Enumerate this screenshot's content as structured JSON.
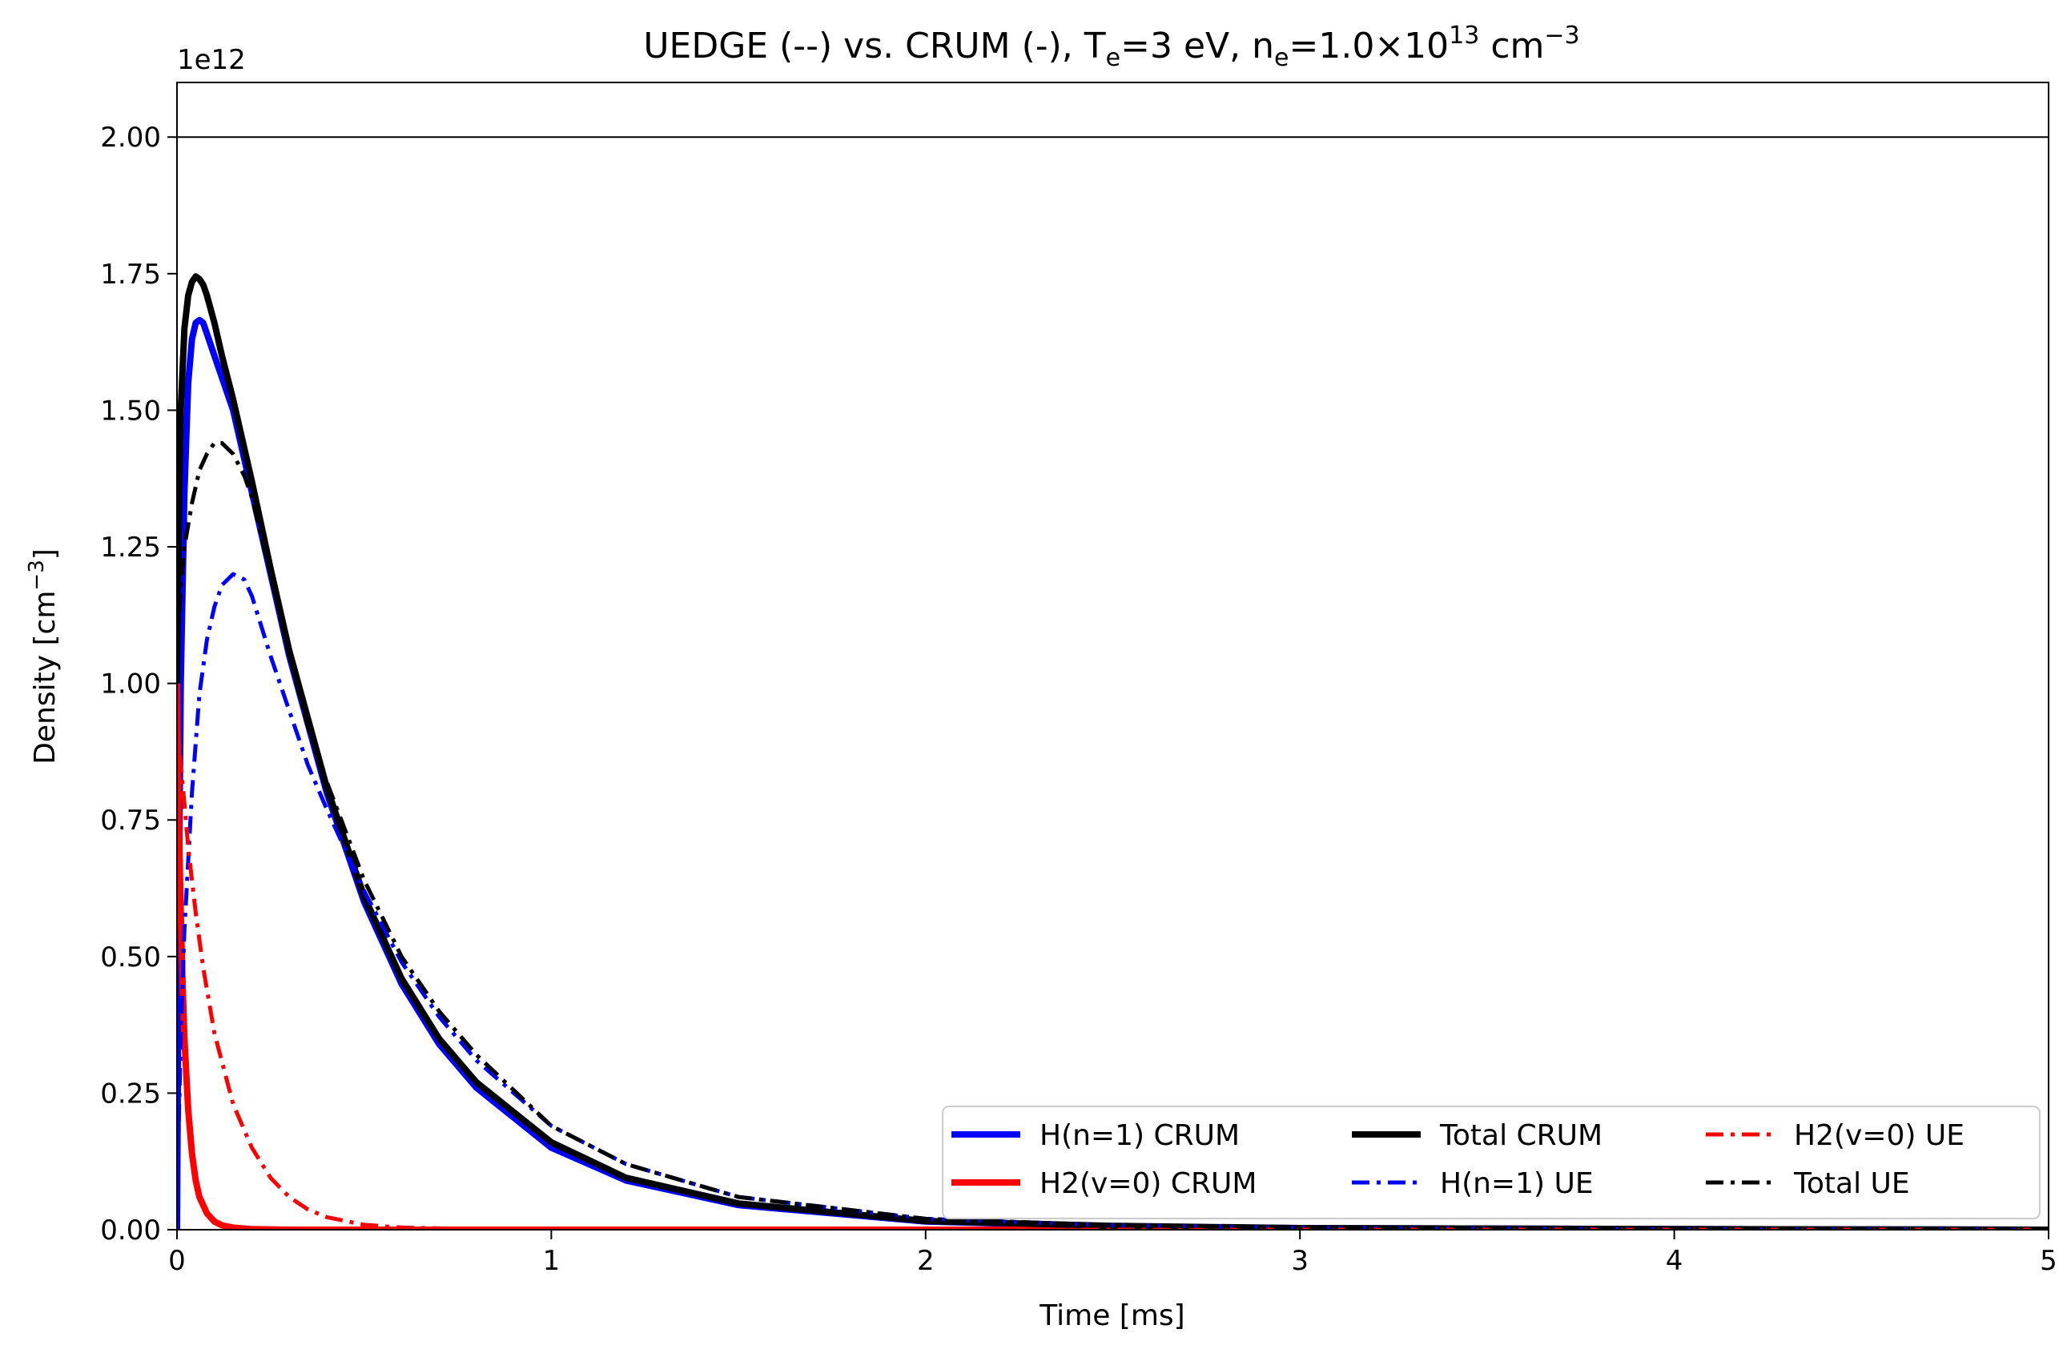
{
  "chart_data": {
    "type": "line",
    "title": {
      "main": "UEDGE (--) vs. CRUM (-),  T",
      "te_sub": "e",
      "te_rest": "=3 eV, n",
      "ne_sub": "e",
      "ne_rest": "=1.0×10",
      "exp": "13",
      "unit": " cm",
      "unit_exp": "−3"
    },
    "xlabel": "Time [ms]",
    "ylabel": {
      "main": "Density [cm",
      "exp": "−3",
      "close": "]"
    },
    "y_offset_label": "1e12",
    "xlim": [
      0,
      5
    ],
    "ylim": [
      0,
      2.1
    ],
    "x_ticks": [
      0,
      1,
      2,
      3,
      4,
      5
    ],
    "x_tick_labels": [
      "0",
      "1",
      "2",
      "3",
      "4",
      "5"
    ],
    "y_ticks": [
      0,
      0.25,
      0.5,
      0.75,
      1.0,
      1.25,
      1.5,
      1.75,
      2.0
    ],
    "y_tick_labels": [
      "0.00",
      "0.25",
      "0.50",
      "0.75",
      "1.00",
      "1.25",
      "1.50",
      "1.75",
      "2.00"
    ],
    "reference_line_y": 2.0,
    "grid": false,
    "legend_position": "lower-right",
    "legend_columns": 3,
    "series": [
      {
        "name": "H(n=1) CRUM",
        "color": "#0000ff",
        "style": "solid",
        "x": [
          0,
          0.005,
          0.01,
          0.02,
          0.03,
          0.04,
          0.05,
          0.06,
          0.07,
          0.08,
          0.1,
          0.12,
          0.15,
          0.2,
          0.25,
          0.3,
          0.4,
          0.5,
          0.6,
          0.7,
          0.8,
          1.0,
          1.2,
          1.5,
          2.0,
          2.5,
          3.0,
          4.0,
          5.0
        ],
        "y": [
          0,
          0.6,
          1.0,
          1.35,
          1.55,
          1.63,
          1.66,
          1.665,
          1.66,
          1.64,
          1.6,
          1.56,
          1.5,
          1.35,
          1.2,
          1.05,
          0.8,
          0.6,
          0.45,
          0.34,
          0.26,
          0.15,
          0.09,
          0.045,
          0.015,
          0.006,
          0.003,
          0.001,
          0.0
        ]
      },
      {
        "name": "H2(v=0) CRUM",
        "color": "#ff0000",
        "style": "solid",
        "x": [
          0,
          0.002,
          0.005,
          0.01,
          0.015,
          0.02,
          0.03,
          0.04,
          0.05,
          0.06,
          0.08,
          0.1,
          0.12,
          0.15,
          0.2,
          0.3,
          0.5,
          1.0,
          2.0,
          3.0,
          5.0
        ],
        "y": [
          1.0,
          0.9,
          0.75,
          0.58,
          0.45,
          0.35,
          0.22,
          0.14,
          0.09,
          0.06,
          0.03,
          0.015,
          0.008,
          0.004,
          0.001,
          0.0,
          0.0,
          0.0,
          0.0,
          0.0,
          0.0
        ]
      },
      {
        "name": "Total CRUM",
        "color": "#000000",
        "style": "solid",
        "x": [
          0,
          0.005,
          0.01,
          0.02,
          0.03,
          0.04,
          0.05,
          0.06,
          0.07,
          0.08,
          0.1,
          0.12,
          0.15,
          0.2,
          0.25,
          0.3,
          0.4,
          0.5,
          0.6,
          0.7,
          0.8,
          1.0,
          1.2,
          1.5,
          2.0,
          2.5,
          3.0,
          4.0,
          5.0
        ],
        "y": [
          1.0,
          1.3,
          1.5,
          1.65,
          1.71,
          1.735,
          1.745,
          1.74,
          1.73,
          1.71,
          1.66,
          1.6,
          1.52,
          1.37,
          1.21,
          1.06,
          0.81,
          0.61,
          0.46,
          0.35,
          0.27,
          0.16,
          0.095,
          0.048,
          0.016,
          0.007,
          0.003,
          0.001,
          0.0
        ]
      },
      {
        "name": "H(n=1) UE",
        "color": "#0000ff",
        "style": "dashdot",
        "x": [
          0,
          0.005,
          0.01,
          0.02,
          0.04,
          0.06,
          0.08,
          0.1,
          0.12,
          0.15,
          0.18,
          0.2,
          0.25,
          0.3,
          0.35,
          0.4,
          0.5,
          0.6,
          0.7,
          0.8,
          1.0,
          1.2,
          1.5,
          2.0,
          2.5,
          3.0,
          4.0,
          5.0
        ],
        "y": [
          0,
          0.2,
          0.35,
          0.55,
          0.8,
          0.98,
          1.08,
          1.14,
          1.18,
          1.2,
          1.19,
          1.16,
          1.05,
          0.95,
          0.85,
          0.77,
          0.62,
          0.49,
          0.39,
          0.31,
          0.19,
          0.12,
          0.06,
          0.02,
          0.008,
          0.004,
          0.001,
          0.0
        ]
      },
      {
        "name": "H2(v=0) UE",
        "color": "#ff0000",
        "style": "dashdot",
        "x": [
          0,
          0.005,
          0.01,
          0.02,
          0.03,
          0.05,
          0.07,
          0.1,
          0.15,
          0.2,
          0.25,
          0.3,
          0.35,
          0.4,
          0.5,
          0.6,
          0.8,
          1.0,
          2.0,
          3.0,
          5.0
        ],
        "y": [
          1.0,
          0.9,
          0.85,
          0.78,
          0.7,
          0.58,
          0.48,
          0.36,
          0.23,
          0.15,
          0.095,
          0.06,
          0.037,
          0.023,
          0.009,
          0.004,
          0.001,
          0.0,
          0.0,
          0.0,
          0.0
        ]
      },
      {
        "name": "Total UE",
        "color": "#000000",
        "style": "dashdot",
        "x": [
          0,
          0.005,
          0.01,
          0.02,
          0.04,
          0.06,
          0.08,
          0.1,
          0.12,
          0.15,
          0.18,
          0.2,
          0.25,
          0.3,
          0.35,
          0.4,
          0.5,
          0.6,
          0.7,
          0.8,
          1.0,
          1.2,
          1.5,
          2.0,
          2.5,
          3.0,
          4.0,
          5.0
        ],
        "y": [
          1.0,
          1.1,
          1.18,
          1.25,
          1.33,
          1.39,
          1.42,
          1.44,
          1.44,
          1.42,
          1.38,
          1.34,
          1.2,
          1.05,
          0.92,
          0.82,
          0.64,
          0.5,
          0.4,
          0.32,
          0.19,
          0.12,
          0.06,
          0.02,
          0.008,
          0.004,
          0.001,
          0.0
        ]
      }
    ]
  }
}
